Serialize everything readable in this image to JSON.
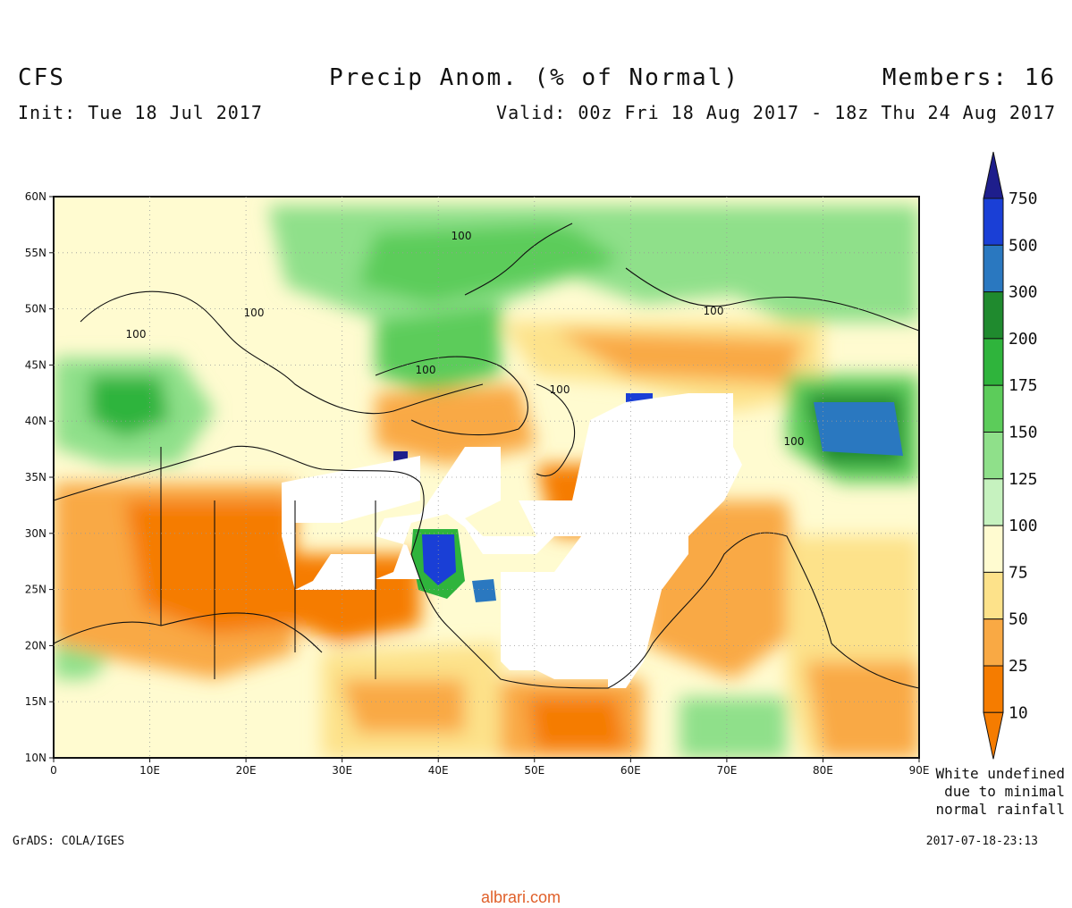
{
  "header": {
    "model": "CFS",
    "title": "Precip Anom. (% of Normal)",
    "members": "Members: 16",
    "init": "Init: Tue 18 Jul 2017",
    "valid": "Valid: 00z Fri 18 Aug 2017 - 18z Thu 24 Aug 2017"
  },
  "map": {
    "lat_labels": [
      "60N",
      "55N",
      "50N",
      "45N",
      "40N",
      "35N",
      "30N",
      "25N",
      "20N",
      "15N",
      "10N"
    ],
    "lon_labels": [
      "0",
      "10E",
      "20E",
      "30E",
      "40E",
      "50E",
      "60E",
      "70E",
      "80E",
      "90E"
    ],
    "lat_range": [
      10,
      60
    ],
    "lon_range": [
      0,
      90
    ],
    "contour_value_labels": [
      "100",
      "100",
      "100",
      "100",
      "100",
      "100",
      "100"
    ]
  },
  "colorbar": {
    "levels": [
      "750",
      "500",
      "300",
      "200",
      "175",
      "150",
      "125",
      "100",
      "75",
      "50",
      "25",
      "10"
    ],
    "colors": [
      "#1e1e8c",
      "#1a3fd6",
      "#2a78c0",
      "#1f8a2e",
      "#2fb43c",
      "#5ccc5a",
      "#8fe08a",
      "#c6f2bf",
      "#fffbd0",
      "#fde28a",
      "#f9a944",
      "#f57c00"
    ],
    "note_lines": [
      "White undefined",
      "due to minimal",
      "normal rainfall"
    ]
  },
  "footer": {
    "left": "GrADS: COLA/IGES",
    "right": "2017-07-18-23:13",
    "watermark": "albrari.com"
  }
}
